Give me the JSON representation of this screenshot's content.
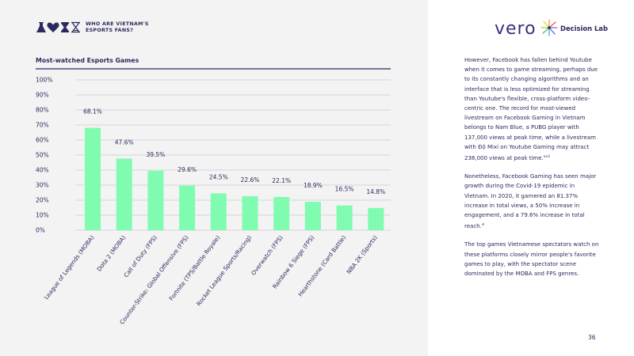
{
  "header": {
    "title_line1": "WHO ARE VIETNAM'S",
    "title_line2": "ESPORTS FANS?"
  },
  "brands": {
    "vero": "vero",
    "decision_lab": "Decision Lab"
  },
  "colors": {
    "bar": "#7ffcb0",
    "text": "#2b2a5e",
    "panel": "#f3f3f3",
    "gridline": "#b8b8c8"
  },
  "icons": [
    "flask-icon",
    "heart-icon",
    "hourglass-icon",
    "hourglass-outline-icon",
    "decision-lab-logo-icon"
  ],
  "chart_data": {
    "type": "bar",
    "title": "Most-watched Esports Games",
    "categories": [
      "League of Legends (MOBA)",
      "Dota 2 (MOBA)",
      "Call of Duty (FPS)",
      "Counter-Strike: Global Offensive (FPS)",
      "Fortnite (TPS/Battle Royale)",
      "Rocket League Sports/Racing)",
      "Overwatch (FPS)",
      "Rainbow 6 Siege (FPS)",
      "Hearthstone (Card Battle)",
      "NBA 2K (Sports)"
    ],
    "values": [
      68.1,
      47.6,
      39.5,
      29.6,
      24.5,
      22.6,
      22.1,
      18.9,
      16.5,
      14.8
    ],
    "value_labels": [
      "68.1%",
      "47.6%",
      "39.5%",
      "29.6%",
      "24.5%",
      "22.6%",
      "22.1%",
      "18.9%",
      "16.5%",
      "14.8%"
    ],
    "yticks": [
      "0%",
      "10%",
      "20%",
      "30%",
      "40%",
      "50%",
      "60%",
      "70%",
      "80%",
      "90%",
      "100%"
    ],
    "ylim": [
      0,
      100
    ],
    "grid": true,
    "legend": "none"
  },
  "text": {
    "p1": "However, Facebook has fallen behind Youtube when it comes to game streaming, perhaps due to its constantly changing algorithms and an interface that is less optimized for streaming than Youtube's flexible, cross-platform video-centric one. The record for most-viewed livestream on Facebook Gaming in Vietnam belongs to Nam Blue, a PUBG player with 137,000 views at peak time, while a livestream with Độ Mixi on Youtube Gaming may attract 238,000 views at peak time.",
    "p1_note": "xxiii",
    "p2": "Nonetheless, Facebook Gaming has seen major growth during the Covid-19 epidemic in Vietnam. In 2020, it garnered an 81.37% increase in total views, a 50% increase in engagement, and a 79.6% increase in total reach.",
    "p2_note": "xl",
    "p3": "The top games Vietnamese spectators watch on these platforms closely mirror people's favorite games to play, with the spectator scene dominated by the MOBA and FPS genres."
  },
  "page_number": "36"
}
